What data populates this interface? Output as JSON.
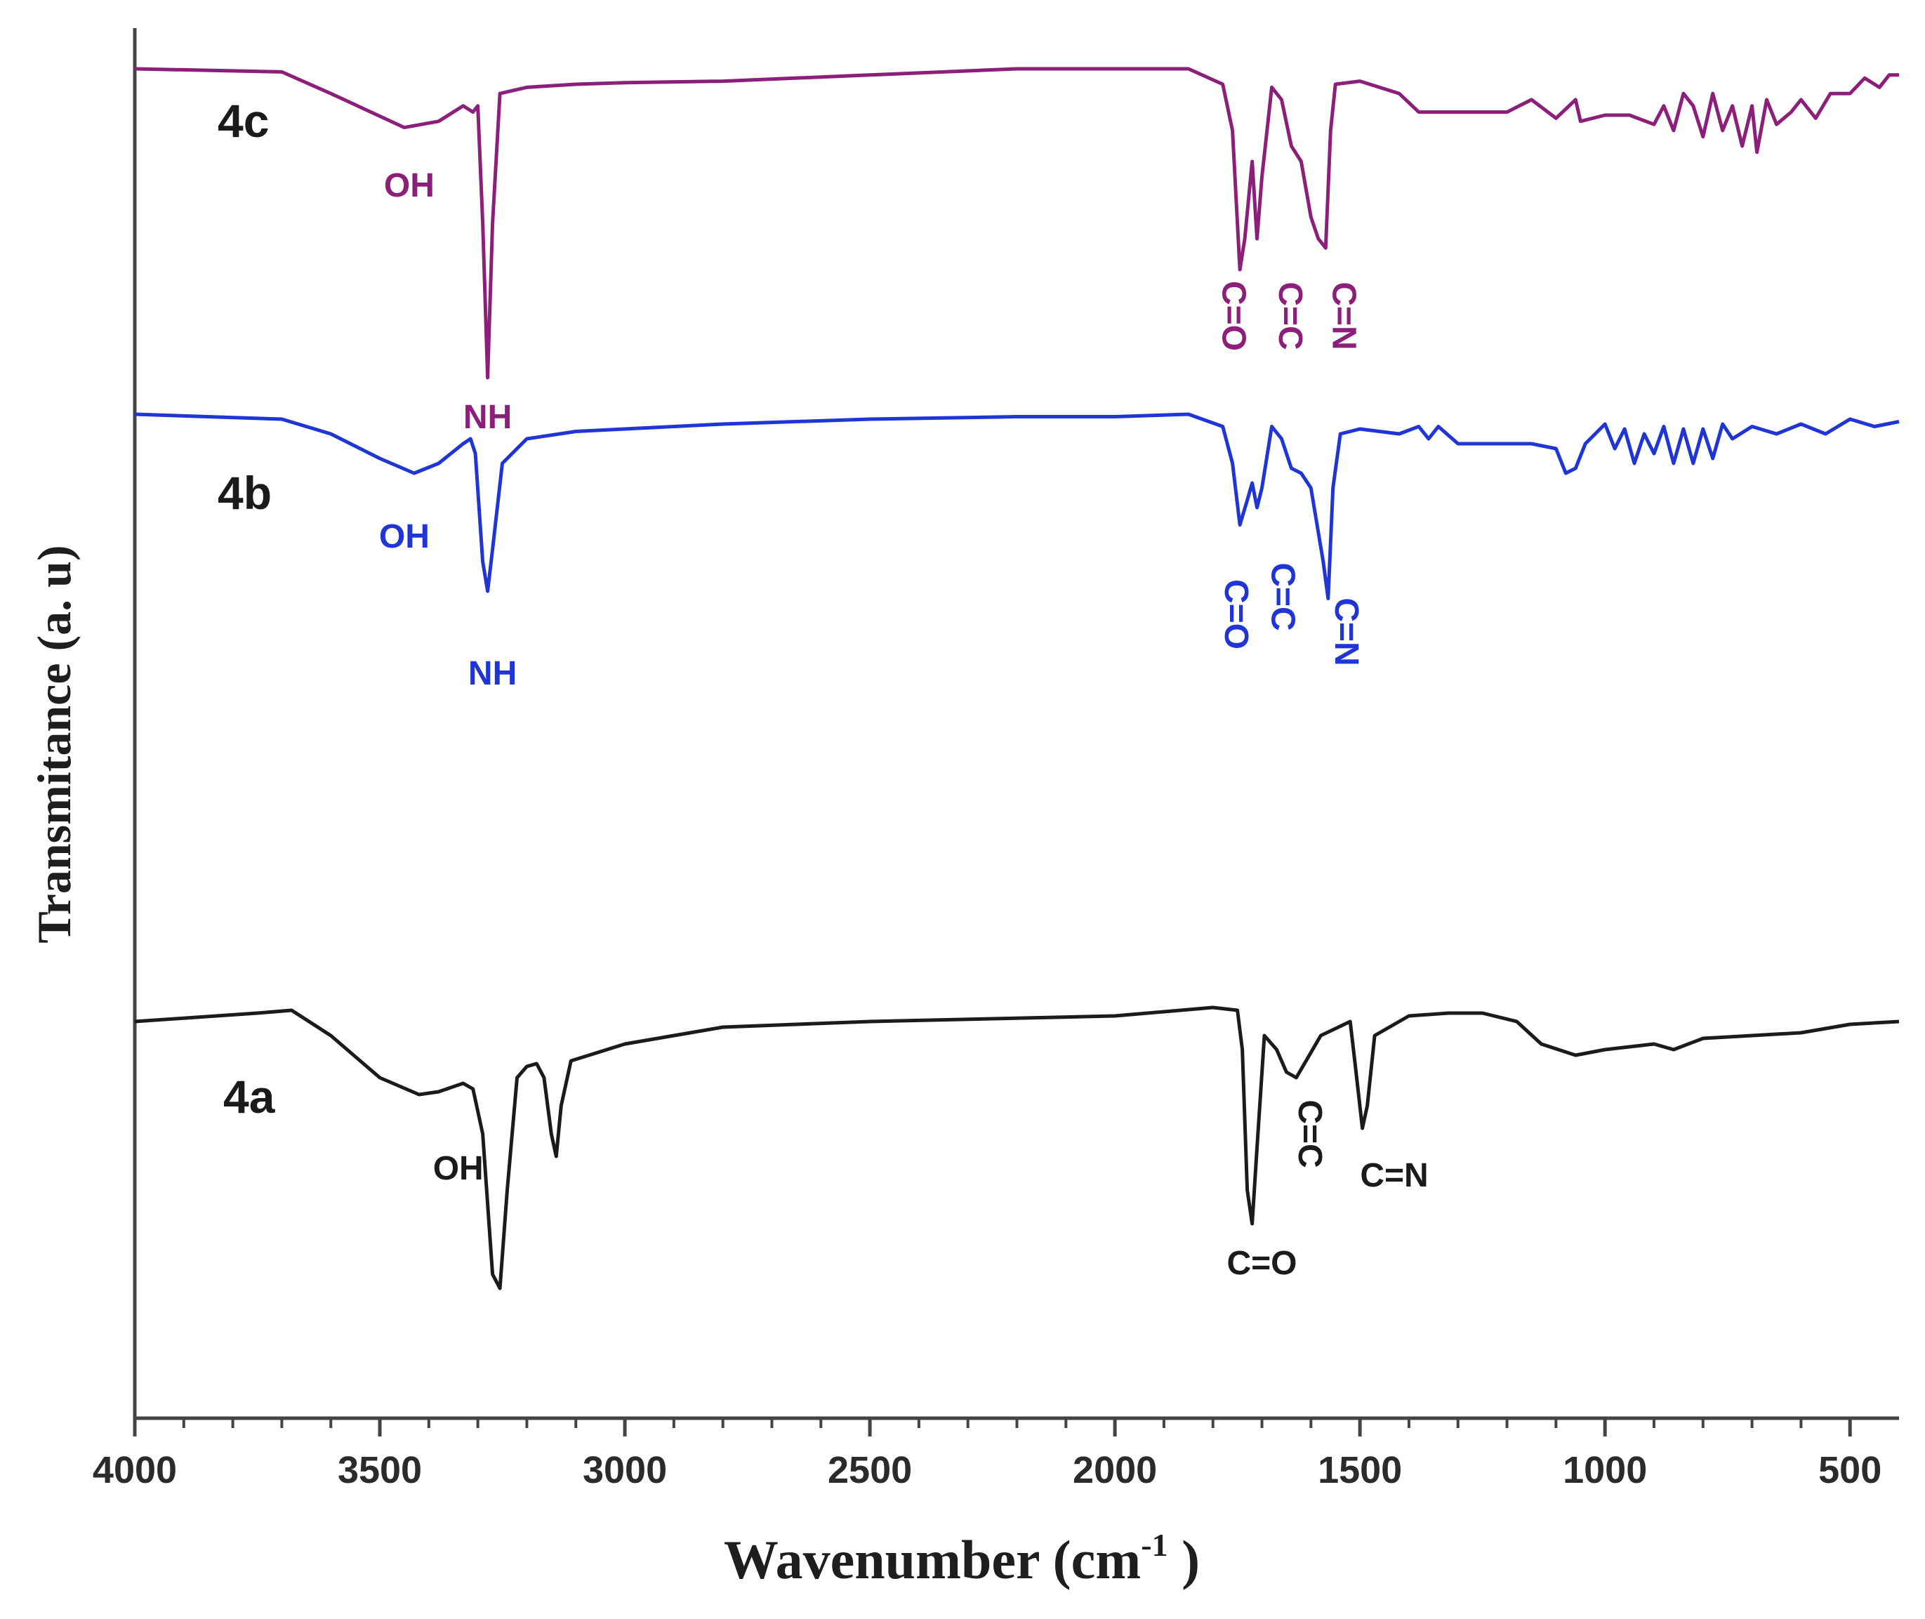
{
  "chart_data": {
    "type": "line",
    "xlabel": "Wavenumber (cm",
    "xlabel_sup": "-1",
    "xlabel_close": " )",
    "ylabel": "Transmitance (a. u)",
    "xlim": [
      4000,
      400
    ],
    "x_reversed": true,
    "y_ticks": false,
    "grid": false,
    "legend": "none",
    "x_ticks": [
      {
        "value": 4000,
        "label": "4000"
      },
      {
        "value": 3500,
        "label": "3500"
      },
      {
        "value": 3000,
        "label": "3000"
      },
      {
        "value": 2500,
        "label": "2500"
      },
      {
        "value": 2000,
        "label": "2000"
      },
      {
        "value": 1500,
        "label": "1500"
      },
      {
        "value": 1000,
        "label": "1000"
      },
      {
        "value": 500,
        "label": "500"
      }
    ],
    "series": [
      {
        "name": "4c",
        "color": "#8c1f7a",
        "points": [
          [
            4000,
            0.0
          ],
          [
            3700,
            0.01
          ],
          [
            3600,
            0.08
          ],
          [
            3450,
            0.19
          ],
          [
            3380,
            0.17
          ],
          [
            3330,
            0.12
          ],
          [
            3310,
            0.14
          ],
          [
            3300,
            0.12
          ],
          [
            3290,
            0.5
          ],
          [
            3280,
            1.0
          ],
          [
            3270,
            0.5
          ],
          [
            3255,
            0.08
          ],
          [
            3200,
            0.06
          ],
          [
            3100,
            0.05
          ],
          [
            3000,
            0.045
          ],
          [
            2800,
            0.04
          ],
          [
            2500,
            0.02
          ],
          [
            2200,
            0.0
          ],
          [
            2000,
            0.0
          ],
          [
            1850,
            0.0
          ],
          [
            1780,
            0.05
          ],
          [
            1760,
            0.2
          ],
          [
            1745,
            0.65
          ],
          [
            1735,
            0.55
          ],
          [
            1720,
            0.3
          ],
          [
            1710,
            0.55
          ],
          [
            1700,
            0.35
          ],
          [
            1680,
            0.06
          ],
          [
            1660,
            0.1
          ],
          [
            1640,
            0.25
          ],
          [
            1620,
            0.3
          ],
          [
            1600,
            0.48
          ],
          [
            1585,
            0.55
          ],
          [
            1570,
            0.58
          ],
          [
            1560,
            0.2
          ],
          [
            1550,
            0.05
          ],
          [
            1500,
            0.04
          ],
          [
            1420,
            0.08
          ],
          [
            1380,
            0.14
          ],
          [
            1300,
            0.14
          ],
          [
            1200,
            0.14
          ],
          [
            1150,
            0.1
          ],
          [
            1100,
            0.16
          ],
          [
            1060,
            0.1
          ],
          [
            1050,
            0.17
          ],
          [
            1000,
            0.15
          ],
          [
            950,
            0.15
          ],
          [
            900,
            0.18
          ],
          [
            880,
            0.12
          ],
          [
            860,
            0.2
          ],
          [
            840,
            0.08
          ],
          [
            820,
            0.12
          ],
          [
            800,
            0.22
          ],
          [
            780,
            0.08
          ],
          [
            760,
            0.2
          ],
          [
            740,
            0.12
          ],
          [
            720,
            0.25
          ],
          [
            700,
            0.12
          ],
          [
            690,
            0.27
          ],
          [
            670,
            0.1
          ],
          [
            650,
            0.18
          ],
          [
            620,
            0.14
          ],
          [
            600,
            0.1
          ],
          [
            570,
            0.16
          ],
          [
            540,
            0.08
          ],
          [
            500,
            0.08
          ],
          [
            470,
            0.03
          ],
          [
            440,
            0.06
          ],
          [
            420,
            0.02
          ],
          [
            400,
            0.02
          ]
        ]
      },
      {
        "name": "4b",
        "color": "#1f35d6",
        "points": [
          [
            4000,
            0.0
          ],
          [
            3700,
            0.02
          ],
          [
            3600,
            0.08
          ],
          [
            3500,
            0.18
          ],
          [
            3430,
            0.24
          ],
          [
            3380,
            0.2
          ],
          [
            3330,
            0.12
          ],
          [
            3315,
            0.1
          ],
          [
            3305,
            0.16
          ],
          [
            3290,
            0.6
          ],
          [
            3280,
            0.72
          ],
          [
            3270,
            0.55
          ],
          [
            3250,
            0.2
          ],
          [
            3200,
            0.1
          ],
          [
            3100,
            0.07
          ],
          [
            3000,
            0.06
          ],
          [
            2800,
            0.04
          ],
          [
            2500,
            0.02
          ],
          [
            2200,
            0.01
          ],
          [
            2000,
            0.01
          ],
          [
            1850,
            0.0
          ],
          [
            1780,
            0.05
          ],
          [
            1760,
            0.2
          ],
          [
            1745,
            0.45
          ],
          [
            1730,
            0.35
          ],
          [
            1720,
            0.28
          ],
          [
            1710,
            0.38
          ],
          [
            1700,
            0.3
          ],
          [
            1680,
            0.05
          ],
          [
            1660,
            0.1
          ],
          [
            1640,
            0.22
          ],
          [
            1620,
            0.24
          ],
          [
            1600,
            0.3
          ],
          [
            1585,
            0.48
          ],
          [
            1575,
            0.6
          ],
          [
            1565,
            0.75
          ],
          [
            1555,
            0.3
          ],
          [
            1540,
            0.08
          ],
          [
            1500,
            0.06
          ],
          [
            1420,
            0.08
          ],
          [
            1380,
            0.05
          ],
          [
            1360,
            0.1
          ],
          [
            1340,
            0.05
          ],
          [
            1300,
            0.12
          ],
          [
            1200,
            0.12
          ],
          [
            1150,
            0.12
          ],
          [
            1100,
            0.14
          ],
          [
            1080,
            0.24
          ],
          [
            1060,
            0.22
          ],
          [
            1040,
            0.12
          ],
          [
            1000,
            0.04
          ],
          [
            980,
            0.14
          ],
          [
            960,
            0.06
          ],
          [
            940,
            0.2
          ],
          [
            920,
            0.08
          ],
          [
            900,
            0.16
          ],
          [
            880,
            0.05
          ],
          [
            860,
            0.2
          ],
          [
            840,
            0.06
          ],
          [
            820,
            0.2
          ],
          [
            800,
            0.06
          ],
          [
            780,
            0.18
          ],
          [
            760,
            0.04
          ],
          [
            740,
            0.1
          ],
          [
            700,
            0.05
          ],
          [
            650,
            0.08
          ],
          [
            600,
            0.04
          ],
          [
            550,
            0.08
          ],
          [
            500,
            0.02
          ],
          [
            450,
            0.05
          ],
          [
            400,
            0.03
          ]
        ]
      },
      {
        "name": "4a",
        "color": "#1b1b1b",
        "points": [
          [
            4000,
            0.0
          ],
          [
            3750,
            -0.03
          ],
          [
            3680,
            -0.04
          ],
          [
            3600,
            0.05
          ],
          [
            3500,
            0.2
          ],
          [
            3420,
            0.26
          ],
          [
            3380,
            0.25
          ],
          [
            3330,
            0.22
          ],
          [
            3310,
            0.24
          ],
          [
            3290,
            0.4
          ],
          [
            3270,
            0.9
          ],
          [
            3255,
            0.95
          ],
          [
            3240,
            0.6
          ],
          [
            3220,
            0.2
          ],
          [
            3200,
            0.16
          ],
          [
            3180,
            0.15
          ],
          [
            3165,
            0.2
          ],
          [
            3150,
            0.4
          ],
          [
            3140,
            0.48
          ],
          [
            3130,
            0.3
          ],
          [
            3110,
            0.14
          ],
          [
            3000,
            0.08
          ],
          [
            2900,
            0.05
          ],
          [
            2800,
            0.02
          ],
          [
            2500,
            0.0
          ],
          [
            2000,
            -0.02
          ],
          [
            1800,
            -0.05
          ],
          [
            1750,
            -0.04
          ],
          [
            1740,
            0.1
          ],
          [
            1730,
            0.6
          ],
          [
            1720,
            0.72
          ],
          [
            1710,
            0.45
          ],
          [
            1695,
            0.05
          ],
          [
            1670,
            0.1
          ],
          [
            1650,
            0.18
          ],
          [
            1630,
            0.2
          ],
          [
            1610,
            0.14
          ],
          [
            1580,
            0.05
          ],
          [
            1520,
            0.0
          ],
          [
            1510,
            0.15
          ],
          [
            1495,
            0.38
          ],
          [
            1485,
            0.3
          ],
          [
            1470,
            0.05
          ],
          [
            1400,
            -0.02
          ],
          [
            1320,
            -0.03
          ],
          [
            1250,
            -0.03
          ],
          [
            1180,
            0.0
          ],
          [
            1130,
            0.08
          ],
          [
            1060,
            0.12
          ],
          [
            1000,
            0.1
          ],
          [
            950,
            0.09
          ],
          [
            900,
            0.08
          ],
          [
            860,
            0.1
          ],
          [
            800,
            0.06
          ],
          [
            700,
            0.05
          ],
          [
            600,
            0.04
          ],
          [
            500,
            0.01
          ],
          [
            400,
            0.0
          ]
        ]
      }
    ],
    "series_labels": [
      {
        "series": "4c",
        "text": "4c"
      },
      {
        "series": "4b",
        "text": "4b"
      },
      {
        "series": "4a",
        "text": "4a"
      }
    ],
    "annotations": [
      {
        "series": "4c",
        "text": "OH",
        "x": 3440,
        "rotated": false
      },
      {
        "series": "4c",
        "text": "NH",
        "x": 3280,
        "rotated": false
      },
      {
        "series": "4c",
        "text": "C=O",
        "x": 1780,
        "rotated": true
      },
      {
        "series": "4c",
        "text": "C=C",
        "x": 1665,
        "rotated": true
      },
      {
        "series": "4c",
        "text": "C=N",
        "x": 1555,
        "rotated": true
      },
      {
        "series": "4b",
        "text": "OH",
        "x": 3450,
        "rotated": false
      },
      {
        "series": "4b",
        "text": "NH",
        "x": 3270,
        "rotated": false
      },
      {
        "series": "4b",
        "text": "C=O",
        "x": 1775,
        "rotated": true
      },
      {
        "series": "4b",
        "text": "C=C",
        "x": 1680,
        "rotated": true
      },
      {
        "series": "4b",
        "text": "C=N",
        "x": 1550,
        "rotated": true
      },
      {
        "series": "4a",
        "text": "OH",
        "x": 3340,
        "rotated": false
      },
      {
        "series": "4a",
        "text": "C=C",
        "x": 1625,
        "rotated": true
      },
      {
        "series": "4a",
        "text": "C=N",
        "x": 1430,
        "rotated": false
      },
      {
        "series": "4a",
        "text": "C=O",
        "x": 1700,
        "rotated": false
      }
    ]
  }
}
